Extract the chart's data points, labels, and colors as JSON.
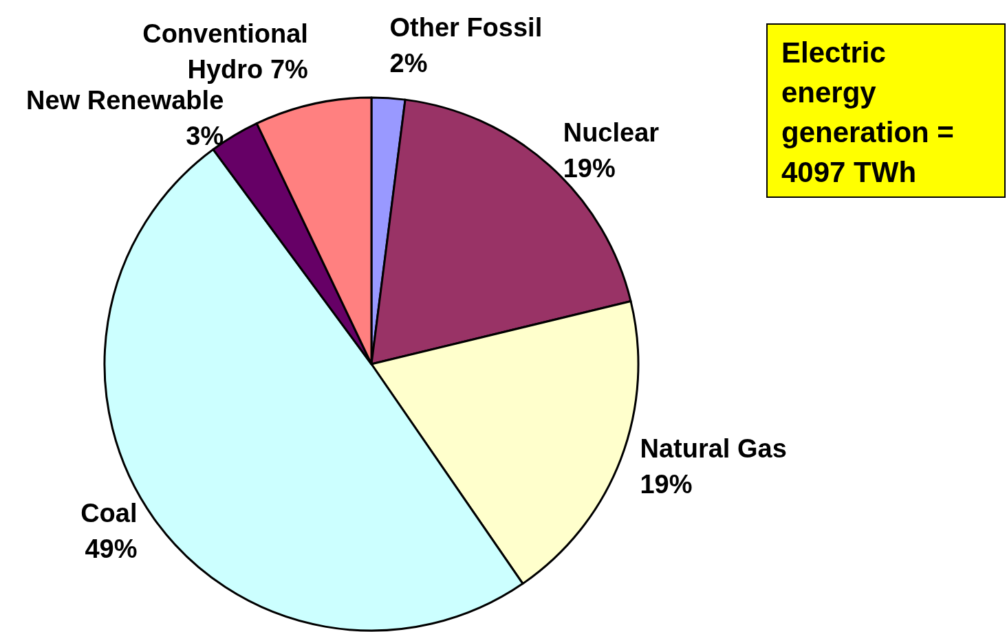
{
  "chart_data": {
    "type": "pie",
    "categories": [
      "Other Fossil",
      "Nuclear",
      "Natural Gas",
      "Coal",
      "New Renewable",
      "Conventional Hydro"
    ],
    "values": [
      2,
      19,
      19,
      49,
      3,
      7
    ],
    "colors": [
      "#9999ff",
      "#993366",
      "#ffffcc",
      "#ccffff",
      "#660066",
      "#ff8080"
    ],
    "value_labels": [
      "2%",
      "19%",
      "19%",
      "49%",
      "3%",
      "7%"
    ],
    "annotations": [
      "Electric energy generation = 4097 TWh"
    ]
  }
}
